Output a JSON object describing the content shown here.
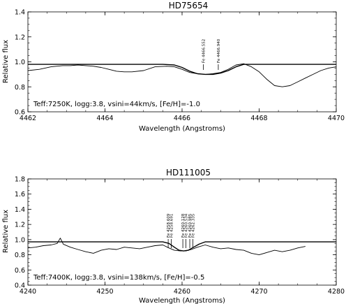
{
  "chart_data": [
    {
      "type": "line",
      "title": "HD75654",
      "xlabel": "Wavelength (Angstroms)",
      "ylabel": "Relative flux",
      "xlim": [
        4462,
        4470
      ],
      "ylim": [
        0.6,
        1.4
      ],
      "xticks": [
        "4462",
        "4464",
        "4466",
        "4468",
        "4470"
      ],
      "yticks": [
        "0.6",
        "0.8",
        "1.0",
        "1.2",
        "1.4"
      ],
      "annotation": "Teff:7250K, logg:3.8, vsini=44km/s, [Fe/H]=-1.0",
      "line_ids": [
        {
          "label": "Fe 4466.552",
          "x": 4466.55
        },
        {
          "label": "Fe 4466.940",
          "x": 4466.94
        }
      ],
      "series": [
        {
          "x": [
            4462.0,
            4462.3,
            4462.6,
            4462.9,
            4463.1,
            4463.3,
            4463.5,
            4463.7,
            4463.9,
            4464.1,
            4464.3,
            4464.5,
            4464.7,
            4465.0,
            4465.3,
            4465.6,
            4465.8,
            4466.0,
            4466.2,
            4466.4,
            4466.6,
            4466.8,
            4467.0,
            4467.2,
            4467.4,
            4467.6,
            4467.8,
            4468.0,
            4468.2,
            4468.4,
            4468.6,
            4468.8,
            4469.0,
            4469.2,
            4469.4,
            4469.6,
            4469.8,
            4470.0
          ],
          "y": [
            0.93,
            0.94,
            0.96,
            0.97,
            0.97,
            0.975,
            0.97,
            0.965,
            0.955,
            0.94,
            0.925,
            0.92,
            0.92,
            0.93,
            0.96,
            0.965,
            0.96,
            0.94,
            0.915,
            0.905,
            0.9,
            0.905,
            0.915,
            0.94,
            0.975,
            0.985,
            0.96,
            0.92,
            0.86,
            0.81,
            0.8,
            0.81,
            0.84,
            0.87,
            0.9,
            0.93,
            0.95,
            0.96
          ]
        },
        {
          "x": [
            4462.0,
            4465.5,
            4465.8,
            4466.0,
            4466.2,
            4466.4,
            4466.6,
            4466.8,
            4467.0,
            4467.2,
            4467.4,
            4467.6,
            4470.0
          ],
          "y": [
            0.98,
            0.98,
            0.975,
            0.955,
            0.925,
            0.905,
            0.9,
            0.9,
            0.91,
            0.93,
            0.96,
            0.98,
            0.98
          ]
        }
      ]
    },
    {
      "type": "line",
      "title": "HD111005",
      "xlabel": "Wavelength (Angstroms)",
      "ylabel": "Relative flux",
      "xlim": [
        4240,
        4280
      ],
      "ylim": [
        0.4,
        1.8
      ],
      "xticks": [
        "4240",
        "4250",
        "4260",
        "4270",
        "4280"
      ],
      "yticks": [
        "0.4",
        "0.6",
        "0.8",
        "1.0",
        "1.2",
        "1.4",
        "1.6",
        "1.8"
      ],
      "annotation": "Teff:7400K, logg:3.8, vsini=138km/s, [Fe/H]=-0.5",
      "line_ids": [
        {
          "label": "Fe 4258.609",
          "x": 4258.2
        },
        {
          "label": "Fe 4258.691",
          "x": 4258.6
        },
        {
          "label": "Fe 4260.128",
          "x": 4260.1
        },
        {
          "label": "Fe 4260.534",
          "x": 4260.5
        },
        {
          "label": "Fe 4260.985",
          "x": 4261.0
        },
        {
          "label": "Fe 4262.335",
          "x": 4261.4
        }
      ],
      "series": [
        {
          "x": [
            4240.0,
            4241.0,
            4242.0,
            4243.0,
            4243.8,
            4244.2,
            4244.6,
            4245.5,
            4246.5,
            4247.5,
            4248.5,
            4249.5,
            4250.5,
            4251.5,
            4252.5,
            4253.5,
            4254.5,
            4255.5,
            4256.5,
            4257.5,
            4258.3,
            4259.0,
            4259.8,
            4260.5,
            4261.2,
            4262.0,
            4263.0,
            4264.0,
            4265.0,
            4266.0,
            4267.0,
            4268.0,
            4269.0,
            4270.0,
            4271.0,
            4272.0,
            4273.0,
            4274.0,
            4275.0,
            4276.0
          ],
          "y": [
            0.89,
            0.9,
            0.92,
            0.93,
            0.95,
            1.02,
            0.94,
            0.9,
            0.87,
            0.84,
            0.82,
            0.86,
            0.88,
            0.87,
            0.9,
            0.89,
            0.88,
            0.9,
            0.92,
            0.93,
            0.89,
            0.86,
            0.85,
            0.85,
            0.87,
            0.9,
            0.93,
            0.9,
            0.88,
            0.89,
            0.87,
            0.86,
            0.82,
            0.8,
            0.83,
            0.86,
            0.84,
            0.86,
            0.89,
            0.91
          ]
        },
        {
          "x": [
            4240.0,
            4257.5,
            4258.3,
            4259.0,
            4259.6,
            4260.2,
            4260.8,
            4261.5,
            4262.2,
            4263.0,
            4280.0
          ],
          "y": [
            0.97,
            0.97,
            0.95,
            0.9,
            0.86,
            0.85,
            0.86,
            0.9,
            0.94,
            0.97,
            0.97
          ]
        }
      ]
    }
  ]
}
